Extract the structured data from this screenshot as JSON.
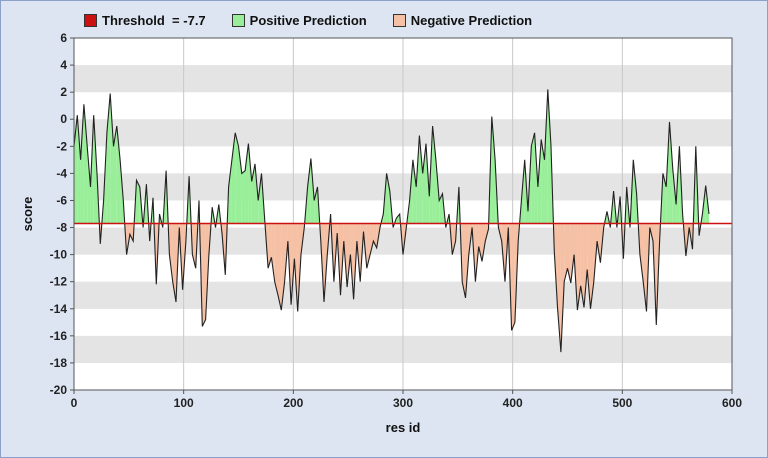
{
  "legend": {
    "threshold_label": "Threshold  = -7.7",
    "positive_label": "Positive Prediction",
    "negative_label": "Negative Prediction"
  },
  "chart_data": {
    "type": "area",
    "title": "",
    "xlabel": "res id",
    "ylabel": "score",
    "xlim": [
      0,
      600
    ],
    "ylim": [
      -20,
      6
    ],
    "x_ticks": [
      0,
      100,
      200,
      300,
      400,
      500,
      600
    ],
    "y_ticks": [
      -20,
      -18,
      -16,
      -14,
      -12,
      -10,
      -8,
      -6,
      -4,
      -2,
      0,
      2,
      4,
      6
    ],
    "threshold": -7.7,
    "grid": true,
    "legend_position": "top",
    "colors": {
      "threshold": "#cc1111",
      "positive_fill": "#99ee99",
      "negative_fill": "#f5c0a4",
      "line": "#222222",
      "band_light": "#ffffff",
      "band_dark": "#e4e4e4"
    },
    "series": [
      {
        "name": "score",
        "points": [
          [
            0,
            -2
          ],
          [
            3,
            0.3
          ],
          [
            6,
            -3
          ],
          [
            9,
            1.1
          ],
          [
            12,
            -2
          ],
          [
            15,
            -5
          ],
          [
            18,
            0.3
          ],
          [
            21,
            -4
          ],
          [
            24,
            -9.2
          ],
          [
            27,
            -6
          ],
          [
            30,
            -1
          ],
          [
            33,
            1.9
          ],
          [
            36,
            -2
          ],
          [
            39,
            -0.5
          ],
          [
            42,
            -3
          ],
          [
            45,
            -6
          ],
          [
            48,
            -10
          ],
          [
            51,
            -8.5
          ],
          [
            54,
            -9
          ],
          [
            57,
            -4.5
          ],
          [
            60,
            -5
          ],
          [
            63,
            -8
          ],
          [
            66,
            -4.8
          ],
          [
            69,
            -9
          ],
          [
            72,
            -5.8
          ],
          [
            75,
            -12.2
          ],
          [
            78,
            -7
          ],
          [
            81,
            -8
          ],
          [
            84,
            -3.8
          ],
          [
            87,
            -10
          ],
          [
            90,
            -12
          ],
          [
            93,
            -13.5
          ],
          [
            96,
            -8
          ],
          [
            99,
            -12.6
          ],
          [
            102,
            -9
          ],
          [
            105,
            -4.2
          ],
          [
            108,
            -10
          ],
          [
            111,
            -11
          ],
          [
            114,
            -6
          ],
          [
            117,
            -15.3
          ],
          [
            120,
            -14.8
          ],
          [
            123,
            -10
          ],
          [
            126,
            -6.5
          ],
          [
            129,
            -8
          ],
          [
            132,
            -6.3
          ],
          [
            135,
            -8.5
          ],
          [
            138,
            -11.5
          ],
          [
            141,
            -5
          ],
          [
            144,
            -3
          ],
          [
            147,
            -1
          ],
          [
            150,
            -2
          ],
          [
            153,
            -4
          ],
          [
            156,
            -3.8
          ],
          [
            159,
            -1.8
          ],
          [
            162,
            -4.6
          ],
          [
            165,
            -3.3
          ],
          [
            168,
            -6
          ],
          [
            171,
            -4
          ],
          [
            174,
            -7.5
          ],
          [
            177,
            -11
          ],
          [
            180,
            -10.2
          ],
          [
            183,
            -12
          ],
          [
            186,
            -13
          ],
          [
            189,
            -14.1
          ],
          [
            192,
            -12
          ],
          [
            195,
            -9
          ],
          [
            198,
            -13.7
          ],
          [
            201,
            -10.3
          ],
          [
            204,
            -14.2
          ],
          [
            207,
            -10
          ],
          [
            210,
            -8
          ],
          [
            213,
            -5
          ],
          [
            216,
            -2.9
          ],
          [
            219,
            -6
          ],
          [
            222,
            -5
          ],
          [
            225,
            -9
          ],
          [
            228,
            -13.5
          ],
          [
            231,
            -10
          ],
          [
            234,
            -7
          ],
          [
            237,
            -12
          ],
          [
            240,
            -8.4
          ],
          [
            243,
            -13
          ],
          [
            246,
            -9
          ],
          [
            249,
            -12.4
          ],
          [
            252,
            -10
          ],
          [
            255,
            -13.3
          ],
          [
            258,
            -9
          ],
          [
            261,
            -12
          ],
          [
            264,
            -8.3
          ],
          [
            267,
            -11
          ],
          [
            270,
            -10
          ],
          [
            273,
            -9
          ],
          [
            276,
            -9.5
          ],
          [
            279,
            -8
          ],
          [
            282,
            -7
          ],
          [
            285,
            -4
          ],
          [
            288,
            -5.3
          ],
          [
            291,
            -8
          ],
          [
            294,
            -7.3
          ],
          [
            297,
            -7
          ],
          [
            300,
            -10
          ],
          [
            303,
            -8
          ],
          [
            306,
            -6
          ],
          [
            309,
            -3
          ],
          [
            312,
            -5
          ],
          [
            315,
            -1.2
          ],
          [
            318,
            -4
          ],
          [
            321,
            -1.8
          ],
          [
            324,
            -5.7
          ],
          [
            327,
            -0.5
          ],
          [
            330,
            -3
          ],
          [
            333,
            -6
          ],
          [
            336,
            -5.5
          ],
          [
            339,
            -8
          ],
          [
            342,
            -7
          ],
          [
            345,
            -10
          ],
          [
            348,
            -9
          ],
          [
            351,
            -5
          ],
          [
            354,
            -12
          ],
          [
            357,
            -13.2
          ],
          [
            360,
            -10
          ],
          [
            363,
            -8
          ],
          [
            366,
            -12
          ],
          [
            369,
            -9.4
          ],
          [
            372,
            -10.5
          ],
          [
            375,
            -9
          ],
          [
            378,
            -8.1
          ],
          [
            381,
            0.2
          ],
          [
            384,
            -3
          ],
          [
            387,
            -8
          ],
          [
            390,
            -9
          ],
          [
            393,
            -12
          ],
          [
            396,
            -8
          ],
          [
            399,
            -15.6
          ],
          [
            402,
            -15
          ],
          [
            405,
            -9
          ],
          [
            408,
            -6
          ],
          [
            411,
            -3
          ],
          [
            414,
            -6.8
          ],
          [
            417,
            -2
          ],
          [
            420,
            -1
          ],
          [
            423,
            -5
          ],
          [
            426,
            -1.5
          ],
          [
            429,
            -3
          ],
          [
            432,
            2.2
          ],
          [
            435,
            -2
          ],
          [
            438,
            -9.8
          ],
          [
            441,
            -14
          ],
          [
            444,
            -17.2
          ],
          [
            447,
            -12
          ],
          [
            450,
            -11
          ],
          [
            453,
            -12.1
          ],
          [
            456,
            -10
          ],
          [
            459,
            -14.1
          ],
          [
            462,
            -12.3
          ],
          [
            465,
            -13.9
          ],
          [
            468,
            -11.1
          ],
          [
            471,
            -14
          ],
          [
            474,
            -12
          ],
          [
            477,
            -9
          ],
          [
            480,
            -10.6
          ],
          [
            483,
            -8
          ],
          [
            486,
            -6.8
          ],
          [
            489,
            -8
          ],
          [
            492,
            -5.3
          ],
          [
            495,
            -8
          ],
          [
            498,
            -5.7
          ],
          [
            501,
            -10.3
          ],
          [
            504,
            -5
          ],
          [
            507,
            -8
          ],
          [
            510,
            -3
          ],
          [
            513,
            -5.5
          ],
          [
            516,
            -10
          ],
          [
            519,
            -12
          ],
          [
            522,
            -14.2
          ],
          [
            525,
            -8
          ],
          [
            528,
            -9
          ],
          [
            531,
            -15.2
          ],
          [
            534,
            -9
          ],
          [
            537,
            -4
          ],
          [
            540,
            -5
          ],
          [
            543,
            -0.2
          ],
          [
            546,
            -3.7
          ],
          [
            549,
            -6.3
          ],
          [
            552,
            -2
          ],
          [
            555,
            -7
          ],
          [
            558,
            -10.1
          ],
          [
            561,
            -8
          ],
          [
            564,
            -9.6
          ],
          [
            567,
            -2
          ],
          [
            570,
            -8.6
          ],
          [
            573,
            -7
          ],
          [
            576,
            -4.9
          ],
          [
            579,
            -7
          ]
        ]
      }
    ]
  }
}
